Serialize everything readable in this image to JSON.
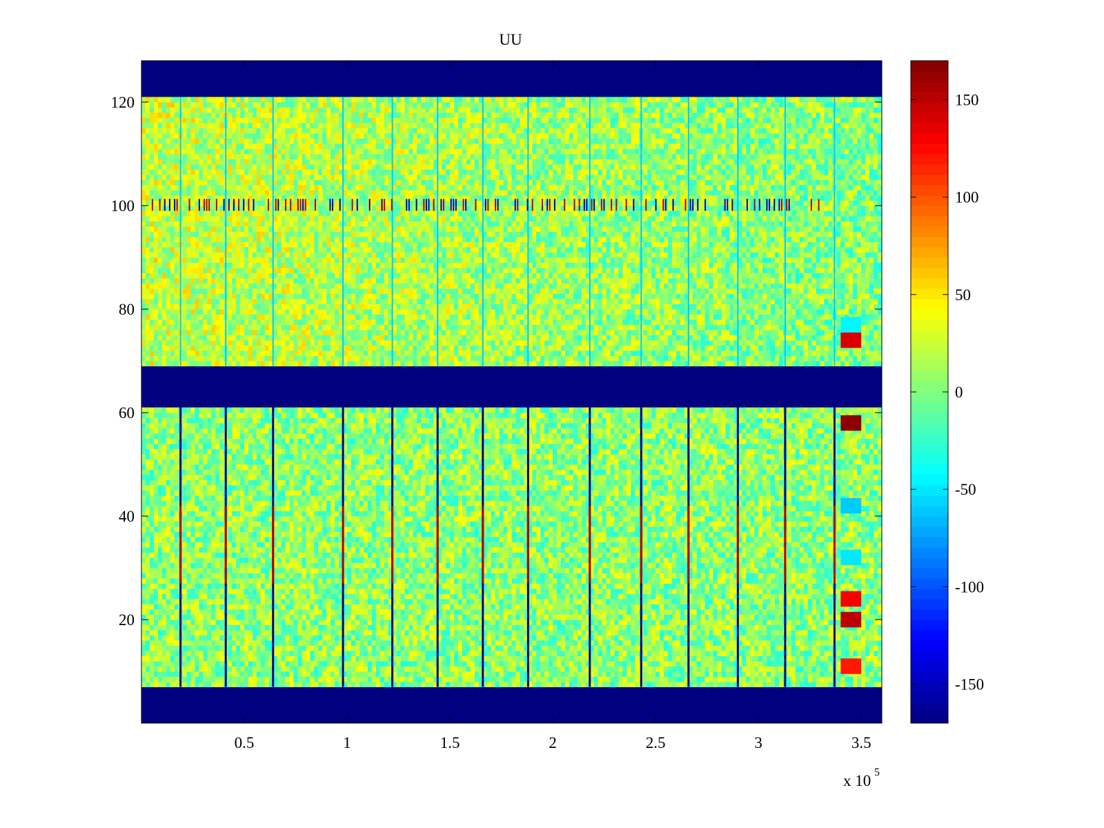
{
  "chart_data": {
    "type": "heatmap",
    "title": "UU",
    "xlabel": "",
    "ylabel": "",
    "x_scale_label": "x 10",
    "x_scale_exponent": "5",
    "xlim": [
      0,
      3.6
    ],
    "ylim": [
      0,
      128
    ],
    "x_ticks": [
      "0.5",
      "1",
      "1.5",
      "2",
      "2.5",
      "3",
      "3.5"
    ],
    "y_ticks": [
      "20",
      "40",
      "60",
      "80",
      "100",
      "120"
    ],
    "colorbar": {
      "colormap": "jet",
      "clim": [
        -170,
        170
      ],
      "ticks": [
        "150",
        "100",
        "50",
        "0",
        "-50",
        "-100",
        "-150"
      ]
    },
    "fill_value": -170,
    "masked_rows": [
      [
        0,
        7
      ],
      [
        61,
        69
      ],
      [
        121,
        128
      ]
    ],
    "data_bands": [
      [
        7,
        61
      ],
      [
        69,
        121
      ]
    ],
    "vertical_stripe_x": [
      0.19,
      0.41,
      0.64,
      0.98,
      1.22,
      1.44,
      1.66,
      1.88,
      2.18,
      2.43,
      2.66,
      2.9,
      3.13,
      3.37
    ],
    "features": [
      {
        "row": 100,
        "description_value": "alternating high/low streaks",
        "x_start": 0.05,
        "x_end": 3.3
      },
      {
        "row": 58,
        "x_start": 3.4,
        "x_end": 3.5,
        "value": 165
      },
      {
        "row": 20,
        "x_start": 3.4,
        "x_end": 3.5,
        "value": 150
      },
      {
        "row": 24,
        "x_start": 3.4,
        "x_end": 3.5,
        "value": 130
      },
      {
        "row": 74,
        "x_start": 3.4,
        "x_end": 3.5,
        "value": 140
      },
      {
        "row": 11,
        "x_start": 3.4,
        "x_end": 3.5,
        "value": 120
      },
      {
        "row": 42,
        "x_start": 3.4,
        "x_end": 3.5,
        "value": -60
      },
      {
        "row": 32,
        "x_start": 3.4,
        "x_end": 3.5,
        "value": -50
      },
      {
        "row": 77,
        "x_start": 3.4,
        "x_end": 3.5,
        "value": -45
      }
    ],
    "field_range": [
      -30,
      45
    ]
  }
}
